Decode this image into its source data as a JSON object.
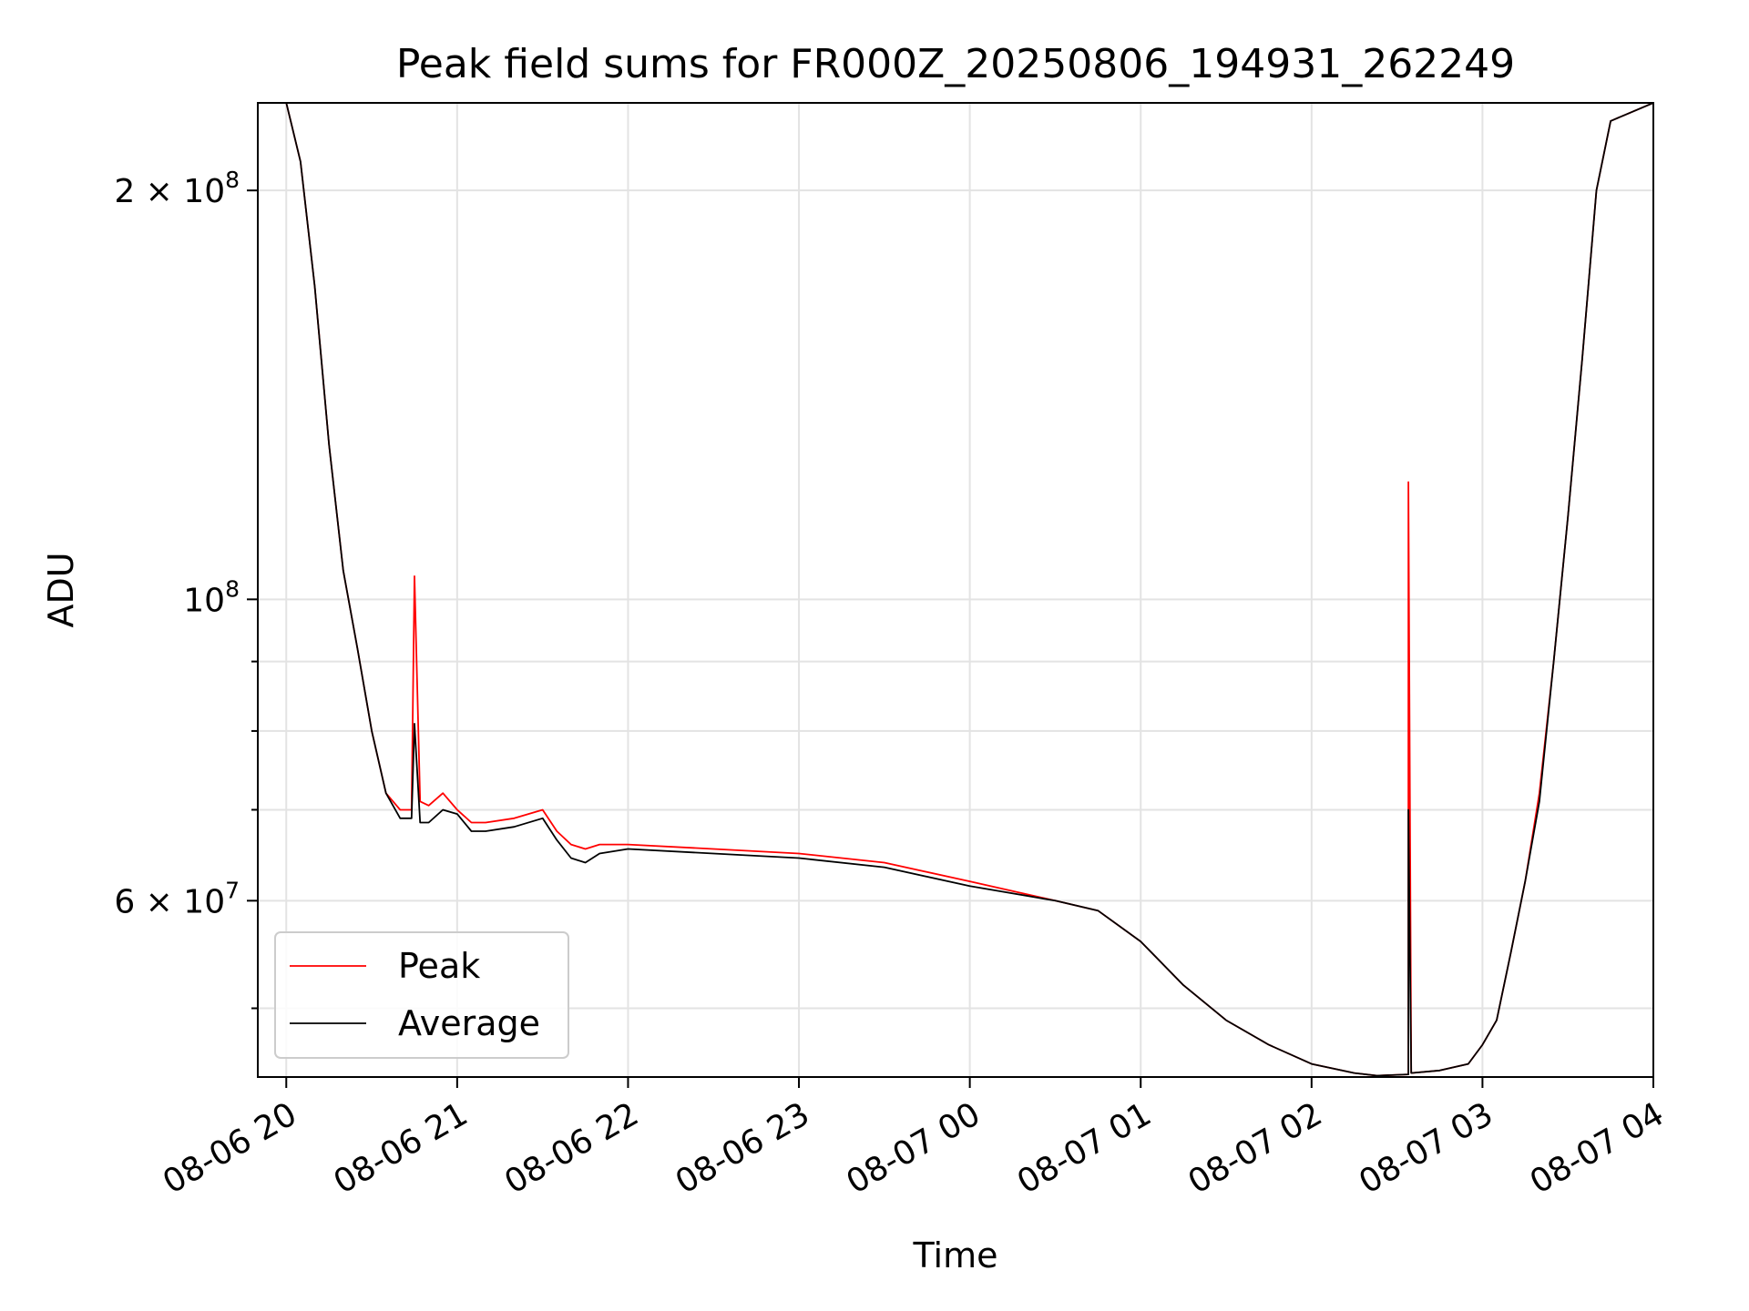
{
  "chart_data": {
    "type": "line",
    "title": "Peak field sums for FR000Z_20250806_194931_262249",
    "xlabel": "Time",
    "ylabel": "ADU",
    "y_scale": "log",
    "xlim": [
      "2025-08-06 19:50",
      "2025-08-07 04:00"
    ],
    "ylim": [
      44500000,
      232000000
    ],
    "grid": true,
    "legend_position": "lower-left",
    "x_ticks": [
      {
        "value": "2025-08-06 20:00",
        "label": "08-06 20"
      },
      {
        "value": "2025-08-06 21:00",
        "label": "08-06 21"
      },
      {
        "value": "2025-08-06 22:00",
        "label": "08-06 22"
      },
      {
        "value": "2025-08-06 23:00",
        "label": "08-06 23"
      },
      {
        "value": "2025-08-07 00:00",
        "label": "08-07 00"
      },
      {
        "value": "2025-08-07 01:00",
        "label": "08-07 01"
      },
      {
        "value": "2025-08-07 02:00",
        "label": "08-07 02"
      },
      {
        "value": "2025-08-07 03:00",
        "label": "08-07 03"
      },
      {
        "value": "2025-08-07 04:00",
        "label": "08-07 04"
      }
    ],
    "y_ticks": [
      {
        "value": 200000000,
        "base": "2 × 10",
        "exp": "8"
      },
      {
        "value": 100000000,
        "base": "10",
        "exp": "8"
      },
      {
        "value": 60000000,
        "base": "6 × 10",
        "exp": "7"
      }
    ],
    "y_minor_ticks": [
      50000000,
      70000000,
      80000000,
      90000000
    ],
    "series": [
      {
        "name": "Peak",
        "color": "#ff0000",
        "x": [
          "2025-08-06 19:50",
          "2025-08-06 20:00",
          "2025-08-06 20:05",
          "2025-08-06 20:10",
          "2025-08-06 20:15",
          "2025-08-06 20:20",
          "2025-08-06 20:25",
          "2025-08-06 20:30",
          "2025-08-06 20:35",
          "2025-08-06 20:40",
          "2025-08-06 20:44",
          "2025-08-06 20:45",
          "2025-08-06 20:47",
          "2025-08-06 20:50",
          "2025-08-06 20:55",
          "2025-08-06 21:00",
          "2025-08-06 21:05",
          "2025-08-06 21:10",
          "2025-08-06 21:20",
          "2025-08-06 21:30",
          "2025-08-06 21:35",
          "2025-08-06 21:40",
          "2025-08-06 21:45",
          "2025-08-06 21:50",
          "2025-08-06 22:00",
          "2025-08-06 22:30",
          "2025-08-06 23:00",
          "2025-08-06 23:30",
          "2025-08-07 00:00",
          "2025-08-07 00:30",
          "2025-08-07 00:45",
          "2025-08-07 01:00",
          "2025-08-07 01:15",
          "2025-08-07 01:30",
          "2025-08-07 01:45",
          "2025-08-07 02:00",
          "2025-08-07 02:15",
          "2025-08-07 02:23",
          "2025-08-07 02:34",
          "2025-08-07 02:34",
          "2025-08-07 02:35",
          "2025-08-07 02:45",
          "2025-08-07 02:55",
          "2025-08-07 03:00",
          "2025-08-07 03:05",
          "2025-08-07 03:10",
          "2025-08-07 03:15",
          "2025-08-07 03:20",
          "2025-08-07 03:25",
          "2025-08-07 03:30",
          "2025-08-07 03:35",
          "2025-08-07 03:40",
          "2025-08-07 03:45",
          "2025-08-07 04:00"
        ],
        "y": [
          232000000,
          232000000,
          210000000,
          170000000,
          130000000,
          105000000,
          92000000,
          80000000,
          72000000,
          70000000,
          70000000,
          104000000,
          71000000,
          70500000,
          72000000,
          70000000,
          68500000,
          68500000,
          69000000,
          70000000,
          67500000,
          66000000,
          65500000,
          66000000,
          66000000,
          65500000,
          65000000,
          64000000,
          62000000,
          60000000,
          59000000,
          56000000,
          52000000,
          49000000,
          47000000,
          45500000,
          44800000,
          44600000,
          44700000,
          122000000,
          44800000,
          45000000,
          45500000,
          47000000,
          49000000,
          55000000,
          62000000,
          72000000,
          90000000,
          115000000,
          150000000,
          200000000,
          225000000,
          232000000
        ]
      },
      {
        "name": "Average",
        "color": "#000000",
        "x": [
          "2025-08-06 19:50",
          "2025-08-06 20:00",
          "2025-08-06 20:05",
          "2025-08-06 20:10",
          "2025-08-06 20:15",
          "2025-08-06 20:20",
          "2025-08-06 20:25",
          "2025-08-06 20:30",
          "2025-08-06 20:35",
          "2025-08-06 20:40",
          "2025-08-06 20:44",
          "2025-08-06 20:45",
          "2025-08-06 20:47",
          "2025-08-06 20:50",
          "2025-08-06 20:55",
          "2025-08-06 21:00",
          "2025-08-06 21:05",
          "2025-08-06 21:10",
          "2025-08-06 21:20",
          "2025-08-06 21:30",
          "2025-08-06 21:35",
          "2025-08-06 21:40",
          "2025-08-06 21:45",
          "2025-08-06 21:50",
          "2025-08-06 22:00",
          "2025-08-06 22:30",
          "2025-08-06 23:00",
          "2025-08-06 23:30",
          "2025-08-07 00:00",
          "2025-08-07 00:30",
          "2025-08-07 00:45",
          "2025-08-07 01:00",
          "2025-08-07 01:15",
          "2025-08-07 01:30",
          "2025-08-07 01:45",
          "2025-08-07 02:00",
          "2025-08-07 02:15",
          "2025-08-07 02:23",
          "2025-08-07 02:34",
          "2025-08-07 02:34",
          "2025-08-07 02:35",
          "2025-08-07 02:45",
          "2025-08-07 02:55",
          "2025-08-07 03:00",
          "2025-08-07 03:05",
          "2025-08-07 03:10",
          "2025-08-07 03:15",
          "2025-08-07 03:20",
          "2025-08-07 03:25",
          "2025-08-07 03:30",
          "2025-08-07 03:35",
          "2025-08-07 03:40",
          "2025-08-07 03:45",
          "2025-08-07 04:00"
        ],
        "y": [
          232000000,
          232000000,
          210000000,
          170000000,
          130000000,
          105000000,
          92000000,
          80000000,
          72000000,
          69000000,
          69000000,
          81000000,
          68500000,
          68500000,
          70000000,
          69500000,
          67500000,
          67500000,
          68000000,
          69000000,
          66500000,
          64500000,
          64000000,
          65000000,
          65500000,
          65000000,
          64500000,
          63500000,
          61500000,
          60000000,
          59000000,
          56000000,
          52000000,
          49000000,
          47000000,
          45500000,
          44800000,
          44600000,
          44700000,
          70000000,
          44800000,
          45000000,
          45500000,
          47000000,
          49000000,
          55000000,
          62000000,
          71000000,
          90000000,
          115000000,
          150000000,
          200000000,
          225000000,
          232000000
        ]
      }
    ]
  }
}
